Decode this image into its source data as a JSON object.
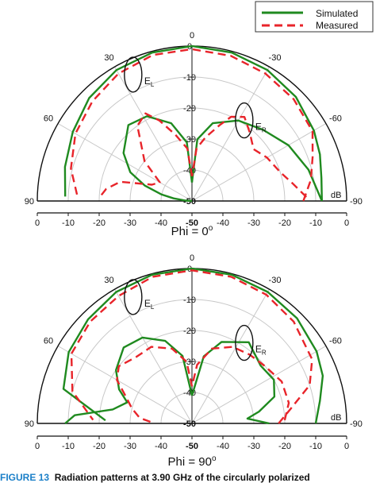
{
  "figure": {
    "caption_lead": "FIGURE 13",
    "caption_text": "Radiation patterns at 3.90 GHz of the circularly polarized"
  },
  "legend": {
    "simulated": "Simulated",
    "measured": "Measured"
  },
  "colors": {
    "simulated": "#1f8a1f",
    "measured": "#e8242a",
    "axis": "#111111",
    "grid": "#c8c8c8"
  },
  "chart_data": [
    {
      "type": "polar-line",
      "title": "Phi = 0°",
      "angle_unit": "deg",
      "angle_range": [
        -90,
        90
      ],
      "angle_ticks": [
        "-90",
        "-60",
        "-30",
        "0",
        "30",
        "60",
        "90"
      ],
      "radial_range": [
        -50,
        0
      ],
      "radial_ticks": [
        "0",
        "-10",
        "-20",
        "-30",
        "-40",
        "-50"
      ],
      "bottom_axis_ticks": [
        "0",
        "-10",
        "-20",
        "-30",
        "-40",
        "-50",
        "-40",
        "-30",
        "-20",
        "-10",
        "0"
      ],
      "radial_unit": "dB",
      "annotations": [
        "EL",
        "ER"
      ],
      "series": [
        {
          "name": "Simulated",
          "lobes": [
            [
              [
                -90,
                -8
              ],
              [
                -80,
                -7.5
              ],
              [
                -70,
                -6
              ],
              [
                -60,
                -4.5
              ],
              [
                -45,
                -2.5
              ],
              [
                -30,
                -1.2
              ],
              [
                -15,
                -0.4
              ],
              [
                0,
                0
              ],
              [
                15,
                -0.4
              ],
              [
                30,
                -1.2
              ],
              [
                45,
                -3
              ],
              [
                60,
                -5.5
              ],
              [
                75,
                -7.5
              ],
              [
                88,
                -9
              ]
            ],
            [
              [
                -90,
                -8
              ],
              [
                -75,
                -11
              ],
              [
                -60,
                -14
              ],
              [
                -45,
                -17.5
              ],
              [
                -30,
                -20
              ],
              [
                -15,
                -24
              ],
              [
                -5,
                -30
              ],
              [
                0,
                -44
              ]
            ],
            [
              [
                0,
                -44
              ],
              [
                5,
                -31
              ],
              [
                15,
                -24
              ],
              [
                28,
                -19
              ],
              [
                40,
                -18
              ],
              [
                55,
                -23
              ],
              [
                65,
                -28
              ],
              [
                72,
                -34
              ],
              [
                78,
                -40
              ],
              [
                82,
                -44
              ],
              [
                86,
                -48
              ],
              [
                88,
                -50
              ]
            ]
          ]
        },
        {
          "name": "Measured",
          "lobes": [
            [
              [
                -90,
                -14
              ],
              [
                -80,
                -11
              ],
              [
                -70,
                -8.5
              ],
              [
                -60,
                -5
              ],
              [
                -45,
                -3.5
              ],
              [
                -30,
                -2.5
              ],
              [
                -15,
                -1.5
              ],
              [
                0,
                -1
              ],
              [
                15,
                -1.2
              ],
              [
                30,
                -2.5
              ],
              [
                45,
                -4.5
              ],
              [
                60,
                -6.5
              ],
              [
                75,
                -9.5
              ],
              [
                88,
                -13
              ]
            ],
            [
              [
                -88,
                -13
              ],
              [
                -80,
                -17
              ],
              [
                -72,
                -20
              ],
              [
                -60,
                -22
              ],
              [
                -50,
                -24
              ],
              [
                -40,
                -21
              ],
              [
                -32,
                -18
              ],
              [
                -25,
                -20
              ],
              [
                -20,
                -24
              ],
              [
                -12,
                -29
              ],
              [
                -5,
                -33
              ],
              [
                0,
                -42
              ]
            ],
            [
              [
                0,
                -42
              ],
              [
                5,
                -33
              ],
              [
                14,
                -28
              ],
              [
                22,
                -22
              ],
              [
                28,
                -18
              ],
              [
                36,
                -20
              ],
              [
                50,
                -30
              ],
              [
                60,
                -38
              ],
              [
                68,
                -36
              ],
              [
                75,
                -26
              ],
              [
                82,
                -22
              ],
              [
                88,
                -20
              ]
            ]
          ]
        }
      ]
    },
    {
      "type": "polar-line",
      "title": "Phi = 90°",
      "angle_unit": "deg",
      "angle_range": [
        -90,
        90
      ],
      "angle_ticks": [
        "-90",
        "-60",
        "-30",
        "0",
        "30",
        "60",
        "90"
      ],
      "radial_range": [
        -50,
        0
      ],
      "radial_ticks": [
        "0",
        "-10",
        "-20",
        "-30",
        "-40",
        "-50"
      ],
      "bottom_axis_ticks": [
        "0",
        "-10",
        "-20",
        "-30",
        "-40",
        "-50",
        "-40",
        "-30",
        "-20",
        "-10",
        "0"
      ],
      "radial_unit": "dB",
      "annotations": [
        "EL",
        "ER"
      ],
      "series": [
        {
          "name": "Simulated",
          "lobes": [
            [
              [
                -90,
                -10
              ],
              [
                -80,
                -8
              ],
              [
                -70,
                -5
              ],
              [
                -60,
                -3.5
              ],
              [
                -45,
                -2
              ],
              [
                -30,
                -1
              ],
              [
                -15,
                -0.3
              ],
              [
                0,
                0
              ],
              [
                15,
                -0.3
              ],
              [
                30,
                -1
              ],
              [
                45,
                -2.5
              ],
              [
                60,
                -4
              ],
              [
                75,
                -7
              ],
              [
                88,
                -22
              ]
            ],
            [
              [
                -90,
                -25
              ],
              [
                -85,
                -32
              ],
              [
                -80,
                -28
              ],
              [
                -72,
                -22
              ],
              [
                -62,
                -20
              ],
              [
                -50,
                -21
              ],
              [
                -35,
                -18
              ],
              [
                -20,
                -22
              ],
              [
                -10,
                -28
              ],
              [
                0,
                -41
              ]
            ],
            [
              [
                0,
                -41
              ],
              [
                8,
                -28
              ],
              [
                18,
                -22
              ],
              [
                30,
                -18
              ],
              [
                42,
                -17
              ],
              [
                55,
                -20
              ],
              [
                65,
                -24
              ],
              [
                72,
                -28
              ],
              [
                80,
                -24
              ],
              [
                86,
                -12
              ],
              [
                90,
                -9
              ]
            ]
          ]
        },
        {
          "name": "Measured",
          "lobes": [
            [
              [
                -90,
                -22
              ],
              [
                -82,
                -18
              ],
              [
                -72,
                -10
              ],
              [
                -62,
                -6
              ],
              [
                -45,
                -3.5
              ],
              [
                -30,
                -2
              ],
              [
                -15,
                -1
              ],
              [
                0,
                -0.6
              ],
              [
                15,
                -1
              ],
              [
                30,
                -2.5
              ],
              [
                45,
                -3.5
              ],
              [
                60,
                -5
              ],
              [
                75,
                -10
              ],
              [
                88,
                -18
              ]
            ],
            [
              [
                -88,
                -20
              ],
              [
                -78,
                -18
              ],
              [
                -65,
                -18
              ],
              [
                -52,
                -20
              ],
              [
                -40,
                -21
              ],
              [
                -28,
                -22
              ],
              [
                -15,
                -25
              ],
              [
                -5,
                -31
              ],
              [
                0,
                -38
              ]
            ],
            [
              [
                0,
                -38
              ],
              [
                5,
                -30
              ],
              [
                15,
                -25
              ],
              [
                28,
                -22
              ],
              [
                40,
                -22
              ],
              [
                52,
                -20
              ],
              [
                60,
                -22
              ],
              [
                68,
                -27
              ],
              [
                76,
                -30
              ],
              [
                84,
                -33
              ],
              [
                90,
                -38
              ]
            ]
          ]
        }
      ]
    }
  ]
}
